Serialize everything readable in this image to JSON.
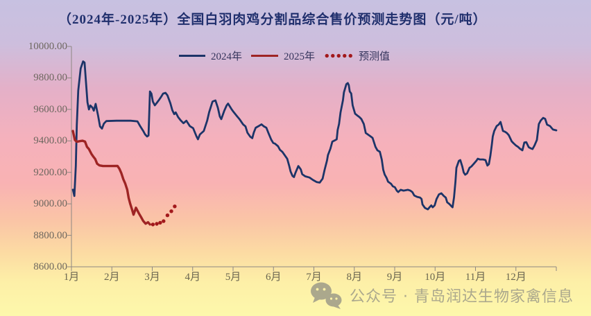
{
  "title": "（2024年-2025年）全国白羽肉鸡分割品综合售价预测走势图（元/吨）",
  "legend": {
    "series_2024": "2024年",
    "series_2025": "2025年",
    "forecast": "预测值"
  },
  "watermark": {
    "icon": "wechat-icon",
    "text": "公众号 · 青岛润达生物家禽信息"
  },
  "colors": {
    "line_2024": "#1c3468",
    "line_2025": "#9e2424",
    "forecast_dots": "#a2191c",
    "title_text": "#202f6d",
    "legend_text": "#34345c",
    "axis_line": "#8d8782",
    "y_label_text": "#6d675f",
    "x_label_text": "#6a6550",
    "bg_top": "#c7c1e1",
    "bg_mid": "#f9b2b3",
    "bg_bottom": "#fdf8ab",
    "watermark": "#a3a08a"
  },
  "chart_data": {
    "type": "line",
    "title": "（2024年-2025年）全国白羽肉鸡分割品综合售价预测走势图（元/吨）",
    "xlabel": "",
    "ylabel": "元/吨",
    "ylim": [
      8600,
      10000
    ],
    "grid": false,
    "legend_position": "top-center",
    "y_ticks": [
      "10000.00",
      "9800.00",
      "9600.00",
      "9400.00",
      "9200.00",
      "9000.00",
      "8800.00",
      "8600.00"
    ],
    "x_ticks": [
      "1月",
      "2月",
      "3月",
      "4月",
      "5月",
      "6月",
      "7月",
      "8月",
      "9月",
      "10月",
      "11月",
      "12月"
    ],
    "x_unit": "fraction_of_year",
    "series": [
      {
        "name": "2024",
        "label": "2024年",
        "style": "solid",
        "color": "#1c3468",
        "width": 2.8,
        "points": [
          [
            0.003,
            9090
          ],
          [
            0.006,
            9050
          ],
          [
            0.009,
            9240
          ],
          [
            0.011,
            9500
          ],
          [
            0.014,
            9720
          ],
          [
            0.019,
            9860
          ],
          [
            0.024,
            9905
          ],
          [
            0.027,
            9898
          ],
          [
            0.03,
            9770
          ],
          [
            0.033,
            9645
          ],
          [
            0.036,
            9600
          ],
          [
            0.039,
            9625
          ],
          [
            0.043,
            9612
          ],
          [
            0.046,
            9592
          ],
          [
            0.05,
            9635
          ],
          [
            0.055,
            9560
          ],
          [
            0.059,
            9492
          ],
          [
            0.063,
            9478
          ],
          [
            0.067,
            9510
          ],
          [
            0.072,
            9526
          ],
          [
            0.093,
            9528
          ],
          [
            0.122,
            9528
          ],
          [
            0.136,
            9524
          ],
          [
            0.142,
            9492
          ],
          [
            0.148,
            9463
          ],
          [
            0.152,
            9441
          ],
          [
            0.156,
            9428
          ],
          [
            0.159,
            9434
          ],
          [
            0.162,
            9714
          ],
          [
            0.165,
            9700
          ],
          [
            0.168,
            9649
          ],
          [
            0.172,
            9626
          ],
          [
            0.176,
            9641
          ],
          [
            0.181,
            9662
          ],
          [
            0.185,
            9680
          ],
          [
            0.189,
            9700
          ],
          [
            0.194,
            9705
          ],
          [
            0.198,
            9689
          ],
          [
            0.204,
            9639
          ],
          [
            0.208,
            9595
          ],
          [
            0.212,
            9570
          ],
          [
            0.215,
            9581
          ],
          [
            0.22,
            9551
          ],
          [
            0.225,
            9531
          ],
          [
            0.231,
            9512
          ],
          [
            0.237,
            9528
          ],
          [
            0.244,
            9494
          ],
          [
            0.251,
            9481
          ],
          [
            0.258,
            9428
          ],
          [
            0.261,
            9410
          ],
          [
            0.265,
            9441
          ],
          [
            0.273,
            9463
          ],
          [
            0.28,
            9529
          ],
          [
            0.284,
            9582
          ],
          [
            0.291,
            9650
          ],
          [
            0.297,
            9657
          ],
          [
            0.302,
            9610
          ],
          [
            0.306,
            9555
          ],
          [
            0.309,
            9538
          ],
          [
            0.315,
            9590
          ],
          [
            0.32,
            9625
          ],
          [
            0.323,
            9637
          ],
          [
            0.33,
            9602
          ],
          [
            0.334,
            9585
          ],
          [
            0.341,
            9558
          ],
          [
            0.347,
            9536
          ],
          [
            0.354,
            9505
          ],
          [
            0.359,
            9492
          ],
          [
            0.363,
            9452
          ],
          [
            0.369,
            9426
          ],
          [
            0.373,
            9417
          ],
          [
            0.376,
            9452
          ],
          [
            0.38,
            9483
          ],
          [
            0.385,
            9492
          ],
          [
            0.392,
            9505
          ],
          [
            0.397,
            9492
          ],
          [
            0.402,
            9483
          ],
          [
            0.406,
            9452
          ],
          [
            0.412,
            9408
          ],
          [
            0.416,
            9387
          ],
          [
            0.42,
            9382
          ],
          [
            0.426,
            9366
          ],
          [
            0.43,
            9343
          ],
          [
            0.435,
            9330
          ],
          [
            0.44,
            9308
          ],
          [
            0.445,
            9286
          ],
          [
            0.449,
            9242
          ],
          [
            0.452,
            9206
          ],
          [
            0.456,
            9177
          ],
          [
            0.459,
            9170
          ],
          [
            0.462,
            9197
          ],
          [
            0.468,
            9240
          ],
          [
            0.473,
            9219
          ],
          [
            0.476,
            9188
          ],
          [
            0.482,
            9175
          ],
          [
            0.491,
            9167
          ],
          [
            0.498,
            9152
          ],
          [
            0.506,
            9138
          ],
          [
            0.512,
            9135
          ],
          [
            0.518,
            9160
          ],
          [
            0.522,
            9215
          ],
          [
            0.527,
            9275
          ],
          [
            0.529,
            9310
          ],
          [
            0.534,
            9350
          ],
          [
            0.538,
            9395
          ],
          [
            0.544,
            9405
          ],
          [
            0.547,
            9410
          ],
          [
            0.549,
            9470
          ],
          [
            0.552,
            9508
          ],
          [
            0.555,
            9580
          ],
          [
            0.56,
            9658
          ],
          [
            0.562,
            9708
          ],
          [
            0.567,
            9760
          ],
          [
            0.57,
            9767
          ],
          [
            0.572,
            9755
          ],
          [
            0.574,
            9714
          ],
          [
            0.577,
            9701
          ],
          [
            0.58,
            9626
          ],
          [
            0.582,
            9604
          ],
          [
            0.585,
            9573
          ],
          [
            0.59,
            9560
          ],
          [
            0.594,
            9551
          ],
          [
            0.598,
            9538
          ],
          [
            0.603,
            9507
          ],
          [
            0.607,
            9450
          ],
          [
            0.613,
            9437
          ],
          [
            0.617,
            9428
          ],
          [
            0.621,
            9419
          ],
          [
            0.627,
            9362
          ],
          [
            0.631,
            9340
          ],
          [
            0.636,
            9331
          ],
          [
            0.64,
            9280
          ],
          [
            0.643,
            9216
          ],
          [
            0.646,
            9186
          ],
          [
            0.65,
            9164
          ],
          [
            0.653,
            9141
          ],
          [
            0.659,
            9128
          ],
          [
            0.663,
            9111
          ],
          [
            0.667,
            9106
          ],
          [
            0.671,
            9084
          ],
          [
            0.674,
            9075
          ],
          [
            0.679,
            9089
          ],
          [
            0.685,
            9084
          ],
          [
            0.694,
            9089
          ],
          [
            0.699,
            9084
          ],
          [
            0.703,
            9075
          ],
          [
            0.707,
            9053
          ],
          [
            0.713,
            9044
          ],
          [
            0.719,
            9040
          ],
          [
            0.722,
            9031
          ],
          [
            0.724,
            8996
          ],
          [
            0.729,
            8974
          ],
          [
            0.735,
            8965
          ],
          [
            0.739,
            8980
          ],
          [
            0.742,
            8990
          ],
          [
            0.745,
            8978
          ],
          [
            0.749,
            8990
          ],
          [
            0.753,
            9030
          ],
          [
            0.758,
            9060
          ],
          [
            0.763,
            9067
          ],
          [
            0.768,
            9050
          ],
          [
            0.772,
            9040
          ],
          [
            0.775,
            9010
          ],
          [
            0.779,
            9000
          ],
          [
            0.783,
            8987
          ],
          [
            0.786,
            8978
          ],
          [
            0.789,
            9040
          ],
          [
            0.792,
            9141
          ],
          [
            0.794,
            9229
          ],
          [
            0.799,
            9273
          ],
          [
            0.802,
            9278
          ],
          [
            0.806,
            9238
          ],
          [
            0.809,
            9199
          ],
          [
            0.812,
            9185
          ],
          [
            0.816,
            9194
          ],
          [
            0.821,
            9229
          ],
          [
            0.825,
            9238
          ],
          [
            0.829,
            9252
          ],
          [
            0.835,
            9273
          ],
          [
            0.838,
            9287
          ],
          [
            0.842,
            9282
          ],
          [
            0.849,
            9282
          ],
          [
            0.854,
            9278
          ],
          [
            0.858,
            9243
          ],
          [
            0.861,
            9252
          ],
          [
            0.864,
            9305
          ],
          [
            0.867,
            9375
          ],
          [
            0.869,
            9428
          ],
          [
            0.872,
            9463
          ],
          [
            0.877,
            9494
          ],
          [
            0.881,
            9503
          ],
          [
            0.885,
            9520
          ],
          [
            0.89,
            9463
          ],
          [
            0.894,
            9458
          ],
          [
            0.898,
            9450
          ],
          [
            0.902,
            9436
          ],
          [
            0.908,
            9397
          ],
          [
            0.912,
            9384
          ],
          [
            0.917,
            9370
          ],
          [
            0.921,
            9362
          ],
          [
            0.925,
            9350
          ],
          [
            0.93,
            9340
          ],
          [
            0.934,
            9390
          ],
          [
            0.938,
            9392
          ],
          [
            0.943,
            9360
          ],
          [
            0.947,
            9353
          ],
          [
            0.951,
            9348
          ],
          [
            0.955,
            9370
          ],
          [
            0.96,
            9406
          ],
          [
            0.964,
            9507
          ],
          [
            0.968,
            9530
          ],
          [
            0.973,
            9546
          ],
          [
            0.977,
            9540
          ],
          [
            0.981,
            9503
          ],
          [
            0.987,
            9494
          ],
          [
            0.993,
            9472
          ],
          [
            1.0,
            9467
          ]
        ]
      },
      {
        "name": "2025",
        "label": "2025年",
        "style": "solid",
        "color": "#9e2424",
        "width": 3.4,
        "points": [
          [
            0.003,
            9463
          ],
          [
            0.007,
            9406
          ],
          [
            0.011,
            9394
          ],
          [
            0.017,
            9398
          ],
          [
            0.023,
            9401
          ],
          [
            0.028,
            9395
          ],
          [
            0.032,
            9362
          ],
          [
            0.036,
            9348
          ],
          [
            0.041,
            9318
          ],
          [
            0.045,
            9300
          ],
          [
            0.049,
            9284
          ],
          [
            0.053,
            9255
          ],
          [
            0.058,
            9244
          ],
          [
            0.065,
            9240
          ],
          [
            0.08,
            9240
          ],
          [
            0.095,
            9241
          ],
          [
            0.099,
            9222
          ],
          [
            0.103,
            9194
          ],
          [
            0.107,
            9156
          ],
          [
            0.111,
            9128
          ],
          [
            0.115,
            9090
          ],
          [
            0.118,
            9037
          ],
          [
            0.121,
            9002
          ],
          [
            0.125,
            8963
          ],
          [
            0.128,
            8931
          ],
          [
            0.133,
            8975
          ],
          [
            0.139,
            8940
          ],
          [
            0.144,
            8913
          ],
          [
            0.148,
            8891
          ],
          [
            0.153,
            8874
          ],
          [
            0.158,
            8883
          ],
          [
            0.162,
            8869
          ]
        ]
      },
      {
        "name": "forecast",
        "label": "预测值",
        "style": "dots",
        "color": "#a2191c",
        "points": [
          [
            0.168,
            8869
          ],
          [
            0.176,
            8873
          ],
          [
            0.183,
            8880
          ],
          [
            0.19,
            8890
          ],
          [
            0.198,
            8927
          ],
          [
            0.206,
            8953
          ],
          [
            0.213,
            8984
          ]
        ]
      }
    ]
  }
}
